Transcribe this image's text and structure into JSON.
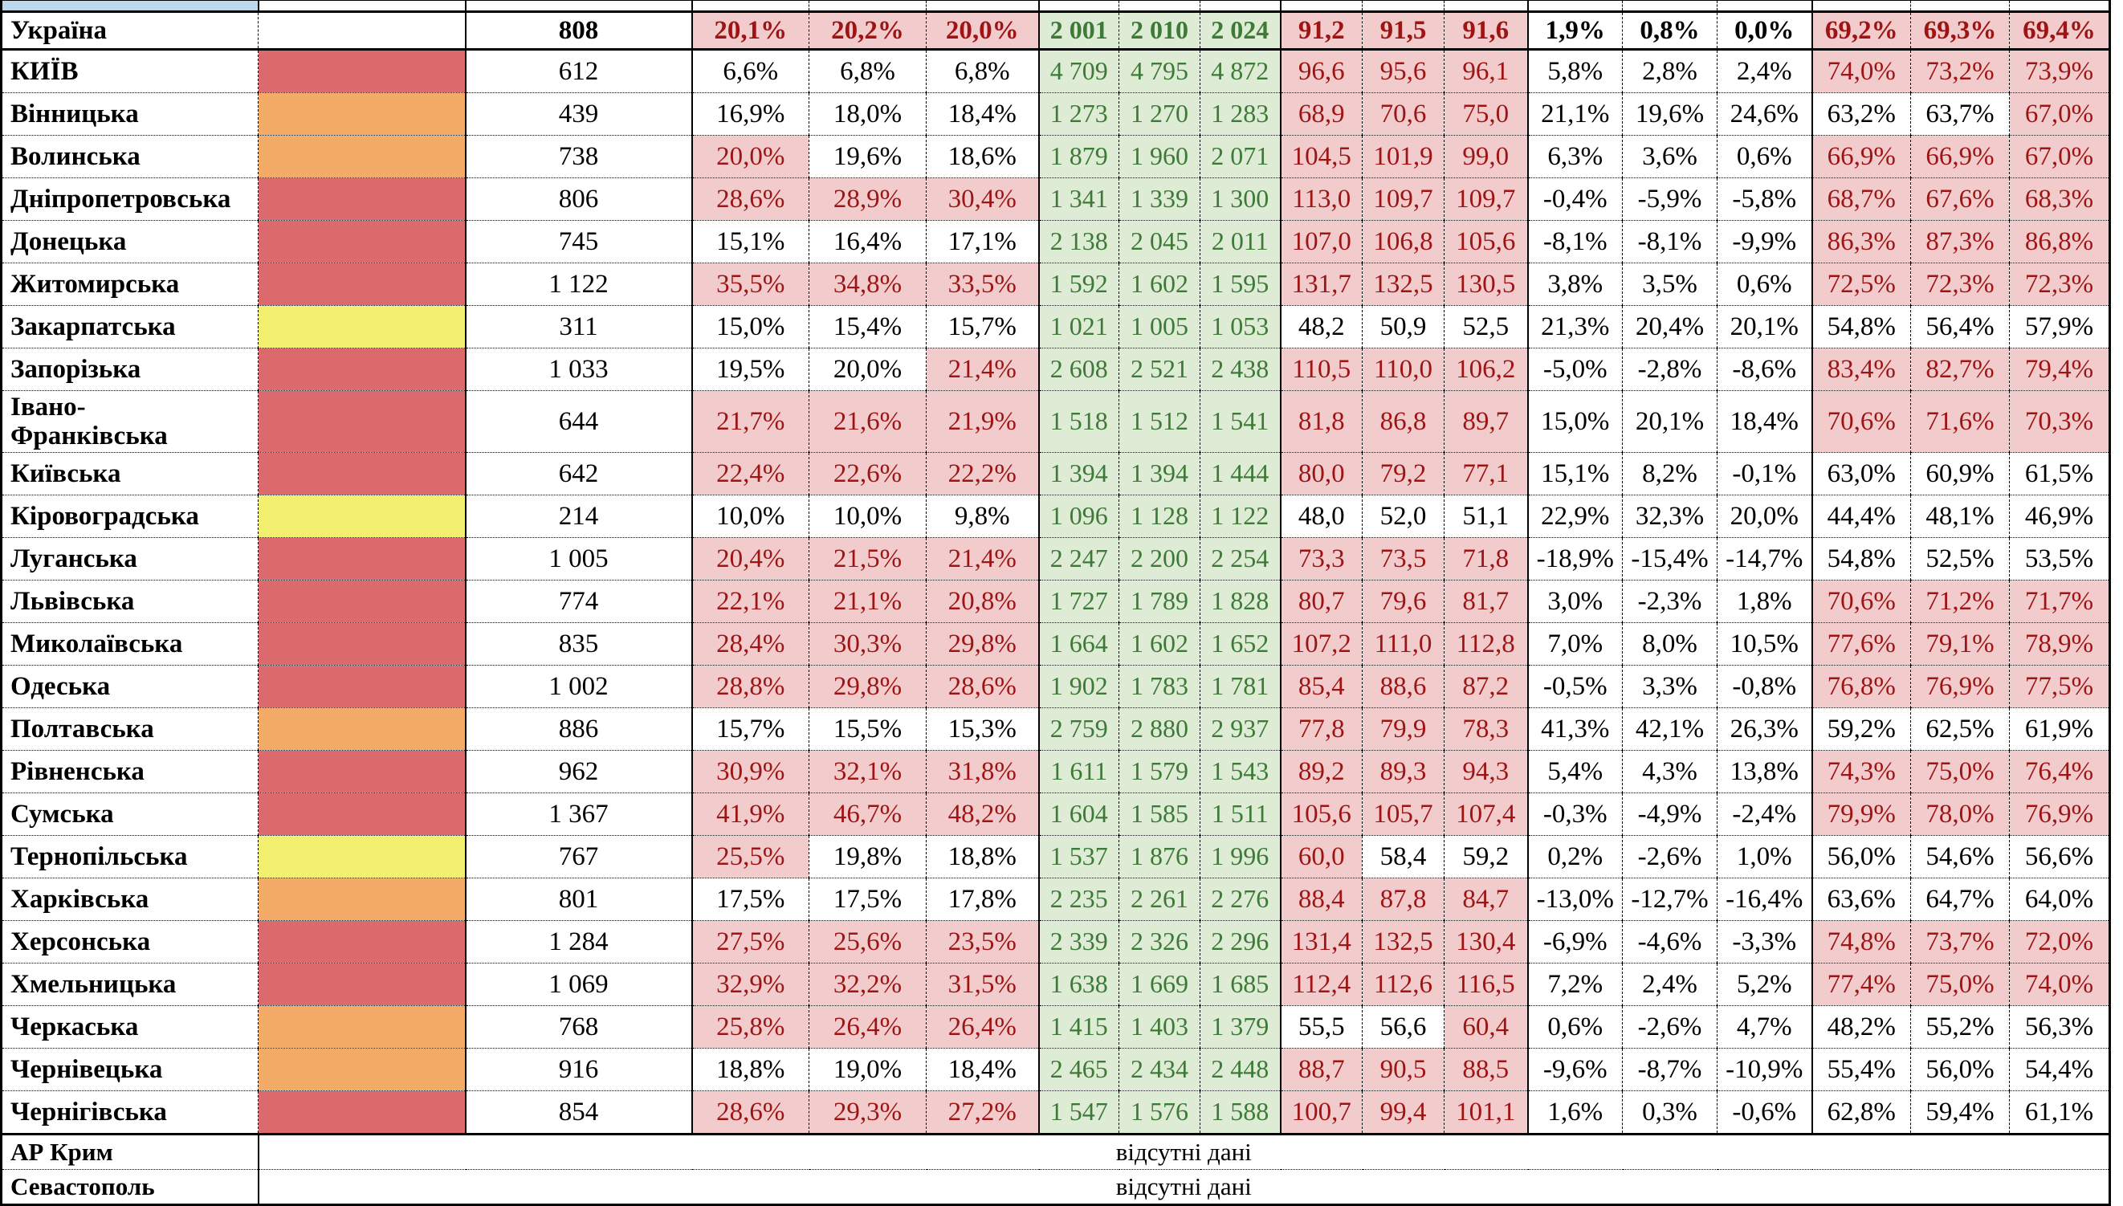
{
  "palette": {
    "swatch_red": "#DC696C",
    "swatch_orange": "#F4AB67",
    "swatch_yellow": "#F3F06F",
    "pink_bg": "#F2CCCC",
    "dark_red_text": "#9E1414",
    "green_bg": "#DEEBD5",
    "green_text": "#3D7A37",
    "header_blue": "#BDD7EE",
    "grid_black": "#000000"
  },
  "table": {
    "no_data_label": "відсутні дані",
    "total": {
      "name": "Україна",
      "color": null,
      "count": "808",
      "pct": [
        "20,1%",
        "20,2%",
        "20,0%"
      ],
      "pct_hl": [
        1,
        1,
        1
      ],
      "vol": [
        "2 001",
        "2 010",
        "2 024"
      ],
      "ratio": [
        "91,2",
        "91,5",
        "91,6"
      ],
      "ratio_hl": [
        1,
        1,
        1
      ],
      "delta": [
        "1,9%",
        "0,8%",
        "0,0%"
      ],
      "share": [
        "69,2%",
        "69,3%",
        "69,4%"
      ],
      "share_hl": [
        1,
        1,
        1
      ]
    },
    "regions": [
      {
        "name": "КИЇВ",
        "color": "red",
        "count": "612",
        "pct": [
          "6,6%",
          "6,8%",
          "6,8%"
        ],
        "pct_hl": [
          0,
          0,
          0
        ],
        "vol": [
          "4 709",
          "4 795",
          "4 872"
        ],
        "ratio": [
          "96,6",
          "95,6",
          "96,1"
        ],
        "ratio_hl": [
          1,
          1,
          1
        ],
        "delta": [
          "5,8%",
          "2,8%",
          "2,4%"
        ],
        "share": [
          "74,0%",
          "73,2%",
          "73,9%"
        ],
        "share_hl": [
          1,
          1,
          1
        ]
      },
      {
        "name": "Вінницька",
        "color": "orange",
        "count": "439",
        "pct": [
          "16,9%",
          "18,0%",
          "18,4%"
        ],
        "pct_hl": [
          0,
          0,
          0
        ],
        "vol": [
          "1 273",
          "1 270",
          "1 283"
        ],
        "ratio": [
          "68,9",
          "70,6",
          "75,0"
        ],
        "ratio_hl": [
          1,
          1,
          1
        ],
        "delta": [
          "21,1%",
          "19,6%",
          "24,6%"
        ],
        "share": [
          "63,2%",
          "63,7%",
          "67,0%"
        ],
        "share_hl": [
          0,
          0,
          1
        ]
      },
      {
        "name": "Волинська",
        "color": "orange",
        "count": "738",
        "pct": [
          "20,0%",
          "19,6%",
          "18,6%"
        ],
        "pct_hl": [
          1,
          0,
          0
        ],
        "vol": [
          "1 879",
          "1 960",
          "2 071"
        ],
        "ratio": [
          "104,5",
          "101,9",
          "99,0"
        ],
        "ratio_hl": [
          1,
          1,
          1
        ],
        "delta": [
          "6,3%",
          "3,6%",
          "0,6%"
        ],
        "share": [
          "66,9%",
          "66,9%",
          "67,0%"
        ],
        "share_hl": [
          1,
          1,
          1
        ]
      },
      {
        "name": "Дніпропетровська",
        "color": "red",
        "count": "806",
        "pct": [
          "28,6%",
          "28,9%",
          "30,4%"
        ],
        "pct_hl": [
          1,
          1,
          1
        ],
        "vol": [
          "1 341",
          "1 339",
          "1 300"
        ],
        "ratio": [
          "113,0",
          "109,7",
          "109,7"
        ],
        "ratio_hl": [
          1,
          1,
          1
        ],
        "delta": [
          "-0,4%",
          "-5,9%",
          "-5,8%"
        ],
        "share": [
          "68,7%",
          "67,6%",
          "68,3%"
        ],
        "share_hl": [
          1,
          1,
          1
        ]
      },
      {
        "name": "Донецька",
        "color": "red",
        "count": "745",
        "pct": [
          "15,1%",
          "16,4%",
          "17,1%"
        ],
        "pct_hl": [
          0,
          0,
          0
        ],
        "vol": [
          "2 138",
          "2 045",
          "2 011"
        ],
        "ratio": [
          "107,0",
          "106,8",
          "105,6"
        ],
        "ratio_hl": [
          1,
          1,
          1
        ],
        "delta": [
          "-8,1%",
          "-8,1%",
          "-9,9%"
        ],
        "share": [
          "86,3%",
          "87,3%",
          "86,8%"
        ],
        "share_hl": [
          1,
          1,
          1
        ]
      },
      {
        "name": "Житомирська",
        "color": "red",
        "count": "1 122",
        "pct": [
          "35,5%",
          "34,8%",
          "33,5%"
        ],
        "pct_hl": [
          1,
          1,
          1
        ],
        "vol": [
          "1 592",
          "1 602",
          "1 595"
        ],
        "ratio": [
          "131,7",
          "132,5",
          "130,5"
        ],
        "ratio_hl": [
          1,
          1,
          1
        ],
        "delta": [
          "3,8%",
          "3,5%",
          "0,6%"
        ],
        "share": [
          "72,5%",
          "72,3%",
          "72,3%"
        ],
        "share_hl": [
          1,
          1,
          1
        ]
      },
      {
        "name": "Закарпатська",
        "color": "yellow",
        "count": "311",
        "pct": [
          "15,0%",
          "15,4%",
          "15,7%"
        ],
        "pct_hl": [
          0,
          0,
          0
        ],
        "vol": [
          "1 021",
          "1 005",
          "1 053"
        ],
        "ratio": [
          "48,2",
          "50,9",
          "52,5"
        ],
        "ratio_hl": [
          0,
          0,
          0
        ],
        "delta": [
          "21,3%",
          "20,4%",
          "20,1%"
        ],
        "share": [
          "54,8%",
          "56,4%",
          "57,9%"
        ],
        "share_hl": [
          0,
          0,
          0
        ]
      },
      {
        "name": "Запорізька",
        "color": "red",
        "count": "1 033",
        "pct": [
          "19,5%",
          "20,0%",
          "21,4%"
        ],
        "pct_hl": [
          0,
          0,
          1
        ],
        "vol": [
          "2 608",
          "2 521",
          "2 438"
        ],
        "ratio": [
          "110,5",
          "110,0",
          "106,2"
        ],
        "ratio_hl": [
          1,
          1,
          1
        ],
        "delta": [
          "-5,0%",
          "-2,8%",
          "-8,6%"
        ],
        "share": [
          "83,4%",
          "82,7%",
          "79,4%"
        ],
        "share_hl": [
          1,
          1,
          1
        ]
      },
      {
        "name": "Івано-Франківська",
        "color": "red",
        "count": "644",
        "tall": true,
        "pct": [
          "21,7%",
          "21,6%",
          "21,9%"
        ],
        "pct_hl": [
          1,
          1,
          1
        ],
        "vol": [
          "1 518",
          "1 512",
          "1 541"
        ],
        "ratio": [
          "81,8",
          "86,8",
          "89,7"
        ],
        "ratio_hl": [
          1,
          1,
          1
        ],
        "delta": [
          "15,0%",
          "20,1%",
          "18,4%"
        ],
        "share": [
          "70,6%",
          "71,6%",
          "70,3%"
        ],
        "share_hl": [
          1,
          1,
          1
        ]
      },
      {
        "name": "Київська",
        "color": "red",
        "count": "642",
        "pct": [
          "22,4%",
          "22,6%",
          "22,2%"
        ],
        "pct_hl": [
          1,
          1,
          1
        ],
        "vol": [
          "1 394",
          "1 394",
          "1 444"
        ],
        "ratio": [
          "80,0",
          "79,2",
          "77,1"
        ],
        "ratio_hl": [
          1,
          1,
          1
        ],
        "delta": [
          "15,1%",
          "8,2%",
          "-0,1%"
        ],
        "share": [
          "63,0%",
          "60,9%",
          "61,5%"
        ],
        "share_hl": [
          0,
          0,
          0
        ]
      },
      {
        "name": "Кіровоградська",
        "color": "yellow",
        "count": "214",
        "pct": [
          "10,0%",
          "10,0%",
          "9,8%"
        ],
        "pct_hl": [
          0,
          0,
          0
        ],
        "vol": [
          "1 096",
          "1 128",
          "1 122"
        ],
        "ratio": [
          "48,0",
          "52,0",
          "51,1"
        ],
        "ratio_hl": [
          0,
          0,
          0
        ],
        "delta": [
          "22,9%",
          "32,3%",
          "20,0%"
        ],
        "share": [
          "44,4%",
          "48,1%",
          "46,9%"
        ],
        "share_hl": [
          0,
          0,
          0
        ]
      },
      {
        "name": "Луганська",
        "color": "red",
        "count": "1 005",
        "pct": [
          "20,4%",
          "21,5%",
          "21,4%"
        ],
        "pct_hl": [
          1,
          1,
          1
        ],
        "vol": [
          "2 247",
          "2 200",
          "2 254"
        ],
        "ratio": [
          "73,3",
          "73,5",
          "71,8"
        ],
        "ratio_hl": [
          1,
          1,
          1
        ],
        "delta": [
          "-18,9%",
          "-15,4%",
          "-14,7%"
        ],
        "share": [
          "54,8%",
          "52,5%",
          "53,5%"
        ],
        "share_hl": [
          0,
          0,
          0
        ]
      },
      {
        "name": "Львівська",
        "color": "red",
        "count": "774",
        "pct": [
          "22,1%",
          "21,1%",
          "20,8%"
        ],
        "pct_hl": [
          1,
          1,
          1
        ],
        "vol": [
          "1 727",
          "1 789",
          "1 828"
        ],
        "ratio": [
          "80,7",
          "79,6",
          "81,7"
        ],
        "ratio_hl": [
          1,
          1,
          1
        ],
        "delta": [
          "3,0%",
          "-2,3%",
          "1,8%"
        ],
        "share": [
          "70,6%",
          "71,2%",
          "71,7%"
        ],
        "share_hl": [
          1,
          1,
          1
        ]
      },
      {
        "name": "Миколаївська",
        "color": "red",
        "count": "835",
        "pct": [
          "28,4%",
          "30,3%",
          "29,8%"
        ],
        "pct_hl": [
          1,
          1,
          1
        ],
        "vol": [
          "1 664",
          "1 602",
          "1 652"
        ],
        "ratio": [
          "107,2",
          "111,0",
          "112,8"
        ],
        "ratio_hl": [
          1,
          1,
          1
        ],
        "delta": [
          "7,0%",
          "8,0%",
          "10,5%"
        ],
        "share": [
          "77,6%",
          "79,1%",
          "78,9%"
        ],
        "share_hl": [
          1,
          1,
          1
        ]
      },
      {
        "name": "Одеська",
        "color": "red",
        "count": "1 002",
        "pct": [
          "28,8%",
          "29,8%",
          "28,6%"
        ],
        "pct_hl": [
          1,
          1,
          1
        ],
        "vol": [
          "1 902",
          "1 783",
          "1 781"
        ],
        "ratio": [
          "85,4",
          "88,6",
          "87,2"
        ],
        "ratio_hl": [
          1,
          1,
          1
        ],
        "delta": [
          "-0,5%",
          "3,3%",
          "-0,8%"
        ],
        "share": [
          "76,8%",
          "76,9%",
          "77,5%"
        ],
        "share_hl": [
          1,
          1,
          1
        ]
      },
      {
        "name": "Полтавська",
        "color": "orange",
        "count": "886",
        "pct": [
          "15,7%",
          "15,5%",
          "15,3%"
        ],
        "pct_hl": [
          0,
          0,
          0
        ],
        "vol": [
          "2 759",
          "2 880",
          "2 937"
        ],
        "ratio": [
          "77,8",
          "79,9",
          "78,3"
        ],
        "ratio_hl": [
          1,
          1,
          1
        ],
        "delta": [
          "41,3%",
          "42,1%",
          "26,3%"
        ],
        "share": [
          "59,2%",
          "62,5%",
          "61,9%"
        ],
        "share_hl": [
          0,
          0,
          0
        ]
      },
      {
        "name": "Рівненська",
        "color": "red",
        "count": "962",
        "pct": [
          "30,9%",
          "32,1%",
          "31,8%"
        ],
        "pct_hl": [
          1,
          1,
          1
        ],
        "vol": [
          "1 611",
          "1 579",
          "1 543"
        ],
        "ratio": [
          "89,2",
          "89,3",
          "94,3"
        ],
        "ratio_hl": [
          1,
          1,
          1
        ],
        "delta": [
          "5,4%",
          "4,3%",
          "13,8%"
        ],
        "share": [
          "74,3%",
          "75,0%",
          "76,4%"
        ],
        "share_hl": [
          1,
          1,
          1
        ]
      },
      {
        "name": "Сумська",
        "color": "red",
        "count": "1 367",
        "pct": [
          "41,9%",
          "46,7%",
          "48,2%"
        ],
        "pct_hl": [
          1,
          1,
          1
        ],
        "vol": [
          "1 604",
          "1 585",
          "1 511"
        ],
        "ratio": [
          "105,6",
          "105,7",
          "107,4"
        ],
        "ratio_hl": [
          1,
          1,
          1
        ],
        "delta": [
          "-0,3%",
          "-4,9%",
          "-2,4%"
        ],
        "share": [
          "79,9%",
          "78,0%",
          "76,9%"
        ],
        "share_hl": [
          1,
          1,
          1
        ]
      },
      {
        "name": "Тернопільська",
        "color": "yellow",
        "count": "767",
        "pct": [
          "25,5%",
          "19,8%",
          "18,8%"
        ],
        "pct_hl": [
          1,
          0,
          0
        ],
        "vol": [
          "1 537",
          "1 876",
          "1 996"
        ],
        "ratio": [
          "60,0",
          "58,4",
          "59,2"
        ],
        "ratio_hl": [
          1,
          0,
          0
        ],
        "delta": [
          "0,2%",
          "-2,6%",
          "1,0%"
        ],
        "share": [
          "56,0%",
          "54,6%",
          "56,6%"
        ],
        "share_hl": [
          0,
          0,
          0
        ]
      },
      {
        "name": "Харківська",
        "color": "orange",
        "count": "801",
        "pct": [
          "17,5%",
          "17,5%",
          "17,8%"
        ],
        "pct_hl": [
          0,
          0,
          0
        ],
        "vol": [
          "2 235",
          "2 261",
          "2 276"
        ],
        "ratio": [
          "88,4",
          "87,8",
          "84,7"
        ],
        "ratio_hl": [
          1,
          1,
          1
        ],
        "delta": [
          "-13,0%",
          "-12,7%",
          "-16,4%"
        ],
        "share": [
          "63,6%",
          "64,7%",
          "64,0%"
        ],
        "share_hl": [
          0,
          0,
          0
        ]
      },
      {
        "name": "Херсонська",
        "color": "red",
        "count": "1 284",
        "pct": [
          "27,5%",
          "25,6%",
          "23,5%"
        ],
        "pct_hl": [
          1,
          1,
          1
        ],
        "vol": [
          "2 339",
          "2 326",
          "2 296"
        ],
        "ratio": [
          "131,4",
          "132,5",
          "130,4"
        ],
        "ratio_hl": [
          1,
          1,
          1
        ],
        "delta": [
          "-6,9%",
          "-4,6%",
          "-3,3%"
        ],
        "share": [
          "74,8%",
          "73,7%",
          "72,0%"
        ],
        "share_hl": [
          1,
          1,
          1
        ]
      },
      {
        "name": "Хмельницька",
        "color": "red",
        "count": "1 069",
        "pct": [
          "32,9%",
          "32,2%",
          "31,5%"
        ],
        "pct_hl": [
          1,
          1,
          1
        ],
        "vol": [
          "1 638",
          "1 669",
          "1 685"
        ],
        "ratio": [
          "112,4",
          "112,6",
          "116,5"
        ],
        "ratio_hl": [
          1,
          1,
          1
        ],
        "delta": [
          "7,2%",
          "2,4%",
          "5,2%"
        ],
        "share": [
          "77,4%",
          "75,0%",
          "74,0%"
        ],
        "share_hl": [
          1,
          1,
          1
        ]
      },
      {
        "name": "Черкаська",
        "color": "orange",
        "count": "768",
        "pct": [
          "25,8%",
          "26,4%",
          "26,4%"
        ],
        "pct_hl": [
          1,
          1,
          1
        ],
        "vol": [
          "1 415",
          "1 403",
          "1 379"
        ],
        "ratio": [
          "55,5",
          "56,6",
          "60,4"
        ],
        "ratio_hl": [
          0,
          0,
          1
        ],
        "delta": [
          "0,6%",
          "-2,6%",
          "4,7%"
        ],
        "share": [
          "48,2%",
          "55,2%",
          "56,3%"
        ],
        "share_hl": [
          0,
          0,
          0
        ]
      },
      {
        "name": "Чернівецька",
        "color": "orange",
        "count": "916",
        "pct": [
          "18,8%",
          "19,0%",
          "18,4%"
        ],
        "pct_hl": [
          0,
          0,
          0
        ],
        "vol": [
          "2 465",
          "2 434",
          "2 448"
        ],
        "ratio": [
          "88,7",
          "90,5",
          "88,5"
        ],
        "ratio_hl": [
          1,
          1,
          1
        ],
        "delta": [
          "-9,6%",
          "-8,7%",
          "-10,9%"
        ],
        "share": [
          "55,4%",
          "56,0%",
          "54,4%"
        ],
        "share_hl": [
          0,
          0,
          0
        ]
      },
      {
        "name": "Чернігівська",
        "color": "red",
        "count": "854",
        "pct": [
          "28,6%",
          "29,3%",
          "27,2%"
        ],
        "pct_hl": [
          1,
          1,
          1
        ],
        "vol": [
          "1 547",
          "1 576",
          "1 588"
        ],
        "ratio": [
          "100,7",
          "99,4",
          "101,1"
        ],
        "ratio_hl": [
          1,
          1,
          1
        ],
        "delta": [
          "1,6%",
          "0,3%",
          "-0,6%"
        ],
        "share": [
          "62,8%",
          "59,4%",
          "61,1%"
        ],
        "share_hl": [
          0,
          0,
          0
        ]
      }
    ],
    "no_data_regions": [
      "АР Крим",
      "Севастополь"
    ]
  }
}
